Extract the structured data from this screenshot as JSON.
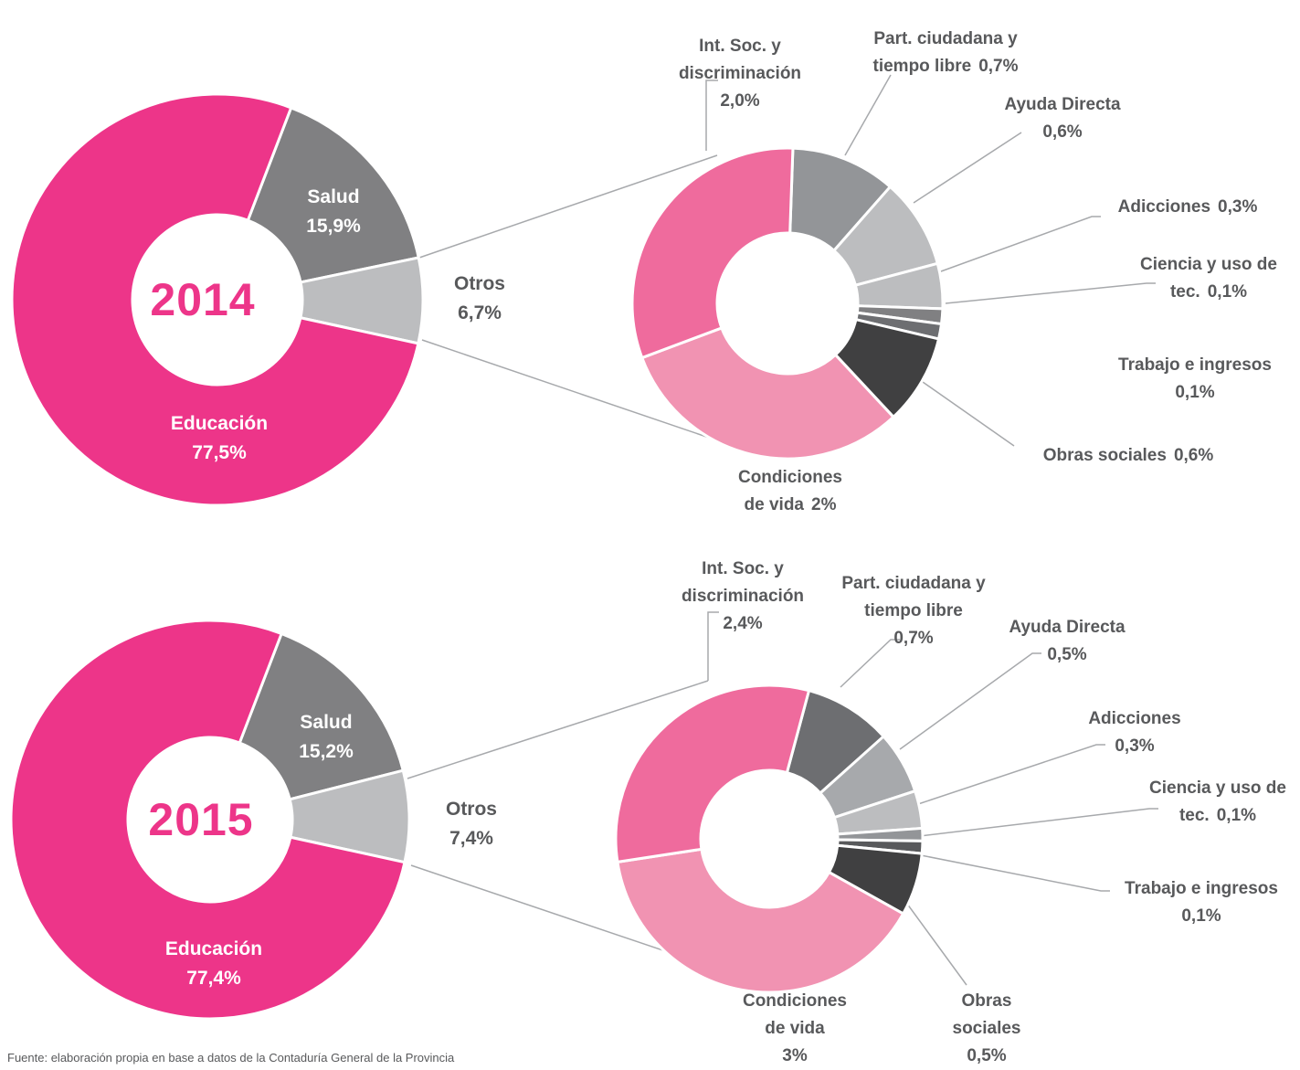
{
  "chart_data": [
    {
      "type": "donut",
      "center_label": "2014",
      "categories": [
        "Salud",
        "Otros",
        "Educación"
      ],
      "values": [
        15.9,
        6.7,
        77.5
      ],
      "value_labels": [
        "15,9%",
        "6,7%",
        "77,5%"
      ],
      "colors": [
        "#808082",
        "#bcbdbf",
        "#ed3589"
      ]
    },
    {
      "type": "donut",
      "categories": [
        "Part. ciudadana y tiempo libre",
        "Ayuda Directa",
        "Adicciones",
        "Ciencia y uso de tec.",
        "Trabajo e ingresos",
        "Obras sociales",
        "Condiciones de vida",
        "Int. Soc. y discriminación"
      ],
      "values": [
        0.7,
        0.6,
        0.3,
        0.1,
        0.1,
        0.6,
        2,
        2.0
      ],
      "value_labels": [
        "0,7%",
        "0,6%",
        "0,3%",
        "0,1%",
        "0,1%",
        "0,6%",
        "2%",
        "2,0%"
      ],
      "colors": [
        "#939598",
        "#bcbdbf",
        "#bcbdbf",
        "#808082",
        "#6d6e71",
        "#404041",
        "#f193b2",
        "#ef6b9d"
      ]
    },
    {
      "type": "donut",
      "center_label": "2015",
      "categories": [
        "Salud",
        "Otros",
        "Educación"
      ],
      "values": [
        15.2,
        7.4,
        77.4
      ],
      "value_labels": [
        "15,2%",
        "7,4%",
        "77,4%"
      ],
      "colors": [
        "#808082",
        "#bcbdbf",
        "#ed3589"
      ]
    },
    {
      "type": "donut",
      "categories": [
        "Part. ciudadana y tiempo libre",
        "Ayuda Directa",
        "Adicciones",
        "Ciencia y uso de tec.",
        "Trabajo e ingresos",
        "Obras sociales",
        "Condiciones de vida",
        "Int. Soc. y discriminación"
      ],
      "values": [
        0.7,
        0.5,
        0.3,
        0.1,
        0.1,
        0.5,
        3,
        2.4
      ],
      "value_labels": [
        "0,7%",
        "0,5%",
        "0,3%",
        "0,1%",
        "0,1%",
        "0,5%",
        "3%",
        "2,4%"
      ],
      "colors": [
        "#6d6e71",
        "#a7a9ac",
        "#bcbdbf",
        "#939598",
        "#58595b",
        "#404041",
        "#f193b2",
        "#ef6b9d"
      ]
    }
  ],
  "source": "Fuente: elaboración propia en base a datos de la Contaduría General de la Provincia"
}
